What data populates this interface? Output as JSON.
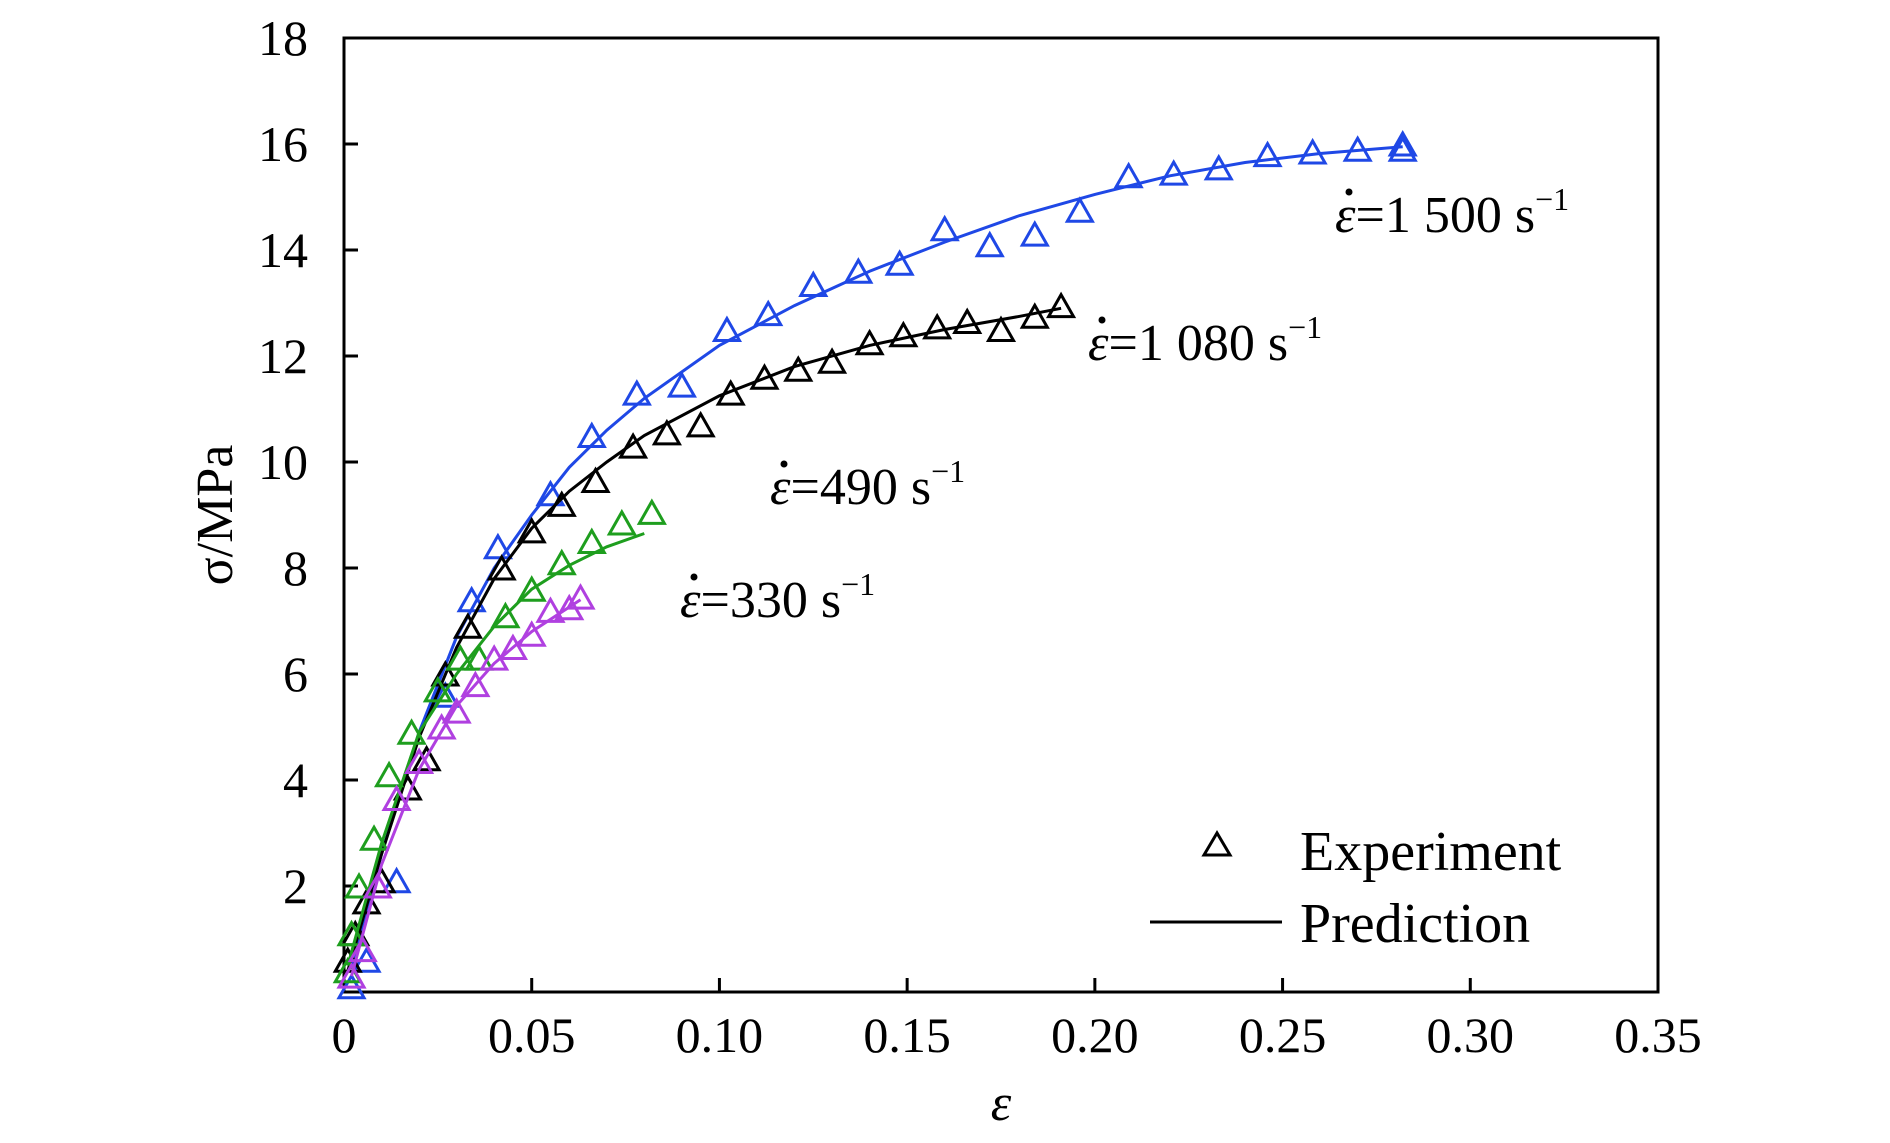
{
  "chart_data": {
    "type": "scatter",
    "title": "",
    "xlabel": "ε",
    "ylabel": "σ/MPa",
    "xlim": [
      0,
      0.35
    ],
    "ylim": [
      0,
      18
    ],
    "x_ticks": [
      0,
      0.05,
      0.1,
      0.15,
      0.2,
      0.25,
      0.3,
      0.35
    ],
    "x_tick_labels": [
      "0",
      "0.05",
      "0.10",
      "0.15",
      "0.20",
      "0.25",
      "0.30",
      "0.35"
    ],
    "y_ticks": [
      2,
      4,
      6,
      8,
      10,
      12,
      14,
      16,
      18
    ],
    "y_tick_labels": [
      "2",
      "4",
      "6",
      "8",
      "10",
      "12",
      "14",
      "16",
      "18"
    ],
    "grid": false,
    "legend_position": "bottom-right",
    "legend": [
      {
        "label": "Experiment",
        "marker": "triangle"
      },
      {
        "label": "Prediction",
        "marker": "line"
      }
    ],
    "series": [
      {
        "rate_label": {
          "prefix": "=1 500 s",
          "sup": "−1"
        },
        "color": "#1f48e6",
        "experiment_x": [
          0.002,
          0.006,
          0.014,
          0.027,
          0.034,
          0.041,
          0.055,
          0.066,
          0.078,
          0.09,
          0.102,
          0.113,
          0.125,
          0.137,
          0.148,
          0.16,
          0.172,
          0.184,
          0.196,
          0.209,
          0.221,
          0.233,
          0.246,
          0.258,
          0.27,
          0.282,
          0.282
        ],
        "experiment_y": [
          0.1,
          0.6,
          2.1,
          5.6,
          7.4,
          8.4,
          9.4,
          10.5,
          11.3,
          11.45,
          12.5,
          12.8,
          13.35,
          13.6,
          13.75,
          14.4,
          14.1,
          14.3,
          14.75,
          15.4,
          15.45,
          15.55,
          15.8,
          15.85,
          15.9,
          16.0,
          15.9
        ],
        "prediction_x": [
          0.002,
          0.01,
          0.02,
          0.03,
          0.04,
          0.05,
          0.06,
          0.07,
          0.08,
          0.1,
          0.12,
          0.14,
          0.16,
          0.18,
          0.2,
          0.22,
          0.24,
          0.26,
          0.282
        ],
        "prediction_y": [
          0.5,
          2.6,
          4.9,
          6.7,
          8.0,
          9.0,
          9.9,
          10.6,
          11.2,
          12.2,
          12.95,
          13.6,
          14.15,
          14.65,
          15.05,
          15.4,
          15.65,
          15.82,
          15.95
        ]
      },
      {
        "rate_label": {
          "prefix": "=1 080 s",
          "sup": "−1"
        },
        "color": "#000000",
        "experiment_x": [
          0.001,
          0.003,
          0.006,
          0.01,
          0.017,
          0.022,
          0.027,
          0.033,
          0.042,
          0.05,
          0.058,
          0.067,
          0.077,
          0.086,
          0.095,
          0.103,
          0.112,
          0.121,
          0.13,
          0.14,
          0.149,
          0.158,
          0.166,
          0.175,
          0.184,
          0.191
        ],
        "experiment_y": [
          0.6,
          1.1,
          1.7,
          2.1,
          3.85,
          4.4,
          6.0,
          6.9,
          8.0,
          8.7,
          9.2,
          9.65,
          10.3,
          10.55,
          10.7,
          11.3,
          11.6,
          11.75,
          11.9,
          12.25,
          12.4,
          12.55,
          12.65,
          12.5,
          12.75,
          12.95
        ],
        "prediction_x": [
          0.001,
          0.01,
          0.02,
          0.03,
          0.04,
          0.05,
          0.06,
          0.07,
          0.08,
          0.1,
          0.12,
          0.14,
          0.16,
          0.18,
          0.191
        ],
        "prediction_y": [
          0.4,
          2.6,
          4.8,
          6.5,
          7.8,
          8.75,
          9.45,
          10.0,
          10.5,
          11.25,
          11.8,
          12.2,
          12.5,
          12.75,
          12.9
        ]
      },
      {
        "rate_label": {
          "prefix": "=490 s",
          "sup": "−1"
        },
        "color": "#1e9e1e",
        "experiment_x": [
          0.001,
          0.002,
          0.004,
          0.008,
          0.012,
          0.018,
          0.025,
          0.031,
          0.036,
          0.043,
          0.05,
          0.058,
          0.066,
          0.074,
          0.082
        ],
        "experiment_y": [
          0.4,
          1.1,
          2.0,
          2.9,
          4.1,
          4.9,
          5.7,
          6.3,
          6.3,
          7.1,
          7.6,
          8.1,
          8.5,
          8.85,
          9.05
        ],
        "prediction_x": [
          0.001,
          0.01,
          0.02,
          0.03,
          0.04,
          0.05,
          0.06,
          0.07,
          0.08
        ],
        "prediction_y": [
          0.5,
          2.8,
          4.9,
          6.0,
          6.9,
          7.6,
          8.05,
          8.4,
          8.65
        ]
      },
      {
        "rate_label": {
          "prefix": "=330 s",
          "sup": "−1"
        },
        "color": "#b040e0",
        "experiment_x": [
          0.002,
          0.005,
          0.009,
          0.014,
          0.02,
          0.026,
          0.03,
          0.035,
          0.04,
          0.045,
          0.05,
          0.055,
          0.06,
          0.063
        ],
        "experiment_y": [
          0.3,
          0.8,
          2.0,
          3.65,
          4.35,
          5.0,
          5.3,
          5.8,
          6.3,
          6.5,
          6.75,
          7.2,
          7.25,
          7.45
        ],
        "prediction_x": [
          0.002,
          0.01,
          0.02,
          0.03,
          0.04,
          0.05,
          0.063
        ],
        "prediction_y": [
          0.3,
          2.4,
          4.2,
          5.4,
          6.2,
          6.8,
          7.4
        ]
      }
    ]
  }
}
